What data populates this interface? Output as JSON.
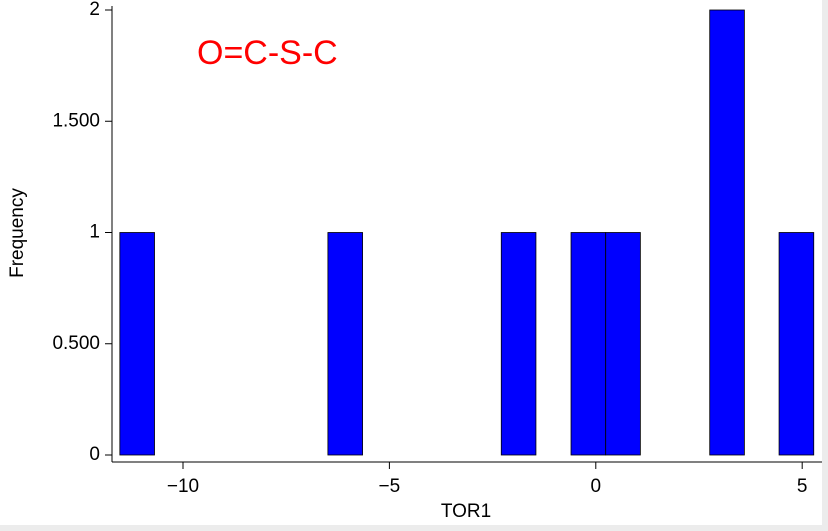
{
  "chart_data": {
    "type": "histogram",
    "xlabel": "TOR1",
    "ylabel": "Frequency",
    "annotation": "O=C-S-C",
    "annotation_color": "#ff0000",
    "bins": [
      -11.53,
      -10.69,
      -9.85,
      -9.01,
      -8.17,
      -7.33,
      -6.49,
      -5.65,
      -4.81,
      -3.97,
      -3.13,
      -2.29,
      -1.45,
      -0.6,
      0.24,
      1.08,
      1.92,
      2.76,
      3.6,
      4.44,
      5.28
    ],
    "counts": [
      1,
      0,
      0,
      0,
      0,
      0,
      1,
      0,
      0,
      0,
      0,
      1,
      0,
      1,
      1,
      0,
      0,
      2,
      0,
      1
    ],
    "color": "#0000ff",
    "xlim": [
      -11.72,
      5.48
    ],
    "xticks": [
      {
        "value": -10,
        "label": "−10"
      },
      {
        "value": -5,
        "label": "−5"
      },
      0,
      5
    ],
    "ylim": [
      0,
      2
    ],
    "yticks": [
      0,
      {
        "value": 0.5,
        "label": "0.500"
      },
      1,
      {
        "value": 1.5,
        "label": "1.500"
      },
      2
    ]
  }
}
